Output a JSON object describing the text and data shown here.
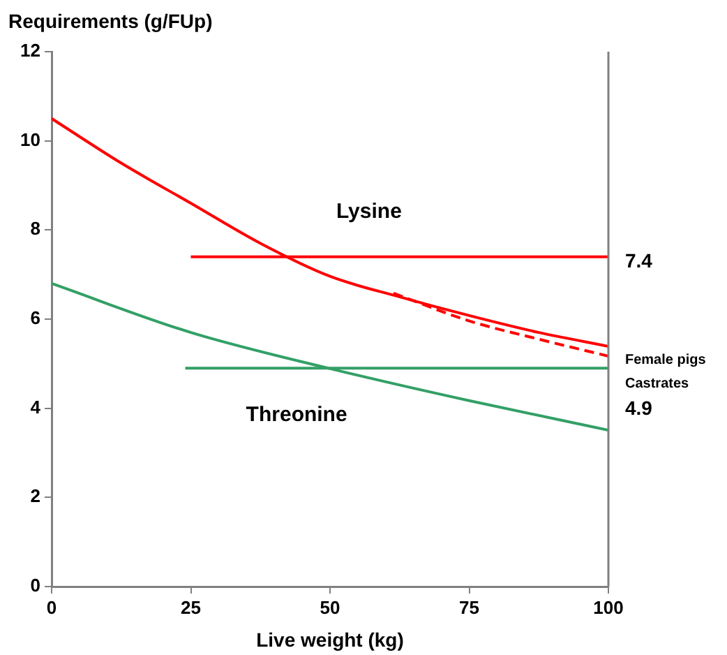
{
  "chart_data": {
    "type": "line",
    "ylabel": "Requirements (g/FUp)",
    "xlabel": "Live weight (kg)",
    "xlim": [
      0,
      100
    ],
    "xticks": [
      0,
      25,
      50,
      75,
      100
    ],
    "ylim": [
      0,
      12
    ],
    "yticks": [
      0,
      2,
      4,
      6,
      8,
      10,
      12
    ],
    "grid": false,
    "legend": false,
    "marker": "none",
    "series": [
      {
        "name": "Female pigs",
        "color": "#ff0000",
        "x": [
          0,
          12.5,
          25,
          37.5,
          50,
          62.5,
          75,
          87.5,
          100
        ],
        "values": [
          10.5,
          9.5,
          8.6,
          7.7,
          6.96,
          6.5,
          6.08,
          5.7,
          5.39
        ]
      },
      {
        "name": "Castrates",
        "color": "#ff0000",
        "line_style": "dashed",
        "x": [
          61.4,
          75,
          87.5,
          100
        ],
        "values": [
          6.58,
          5.96,
          5.55,
          5.17
        ]
      },
      {
        "color": "#33a066",
        "x": [
          0,
          25,
          50,
          75,
          100
        ],
        "values": [
          6.8,
          5.7,
          4.89,
          4.17,
          3.51
        ]
      },
      {
        "color": "#ff0000",
        "x": [
          25,
          100
        ],
        "values": [
          7.4,
          7.4
        ],
        "value_labels": [
          null,
          "7.4"
        ]
      },
      {
        "color": "#33a066",
        "x": [
          24,
          100
        ],
        "values": [
          4.9,
          4.9
        ],
        "value_labels": [
          null,
          "4.9"
        ]
      }
    ],
    "annotations": [
      "Lysine",
      "Threonine"
    ]
  }
}
